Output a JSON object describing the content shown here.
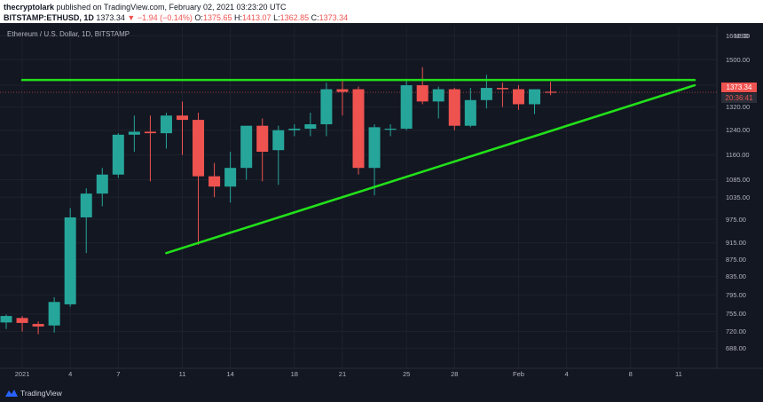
{
  "header": {
    "author": "thecryptolark",
    "published_text": "published on TradingView.com, February 02, 2021 03:23:20 UTC",
    "symbol": "BITSTAMP:ETHUSD, 1D",
    "last": "1373.34",
    "change": "−1.94 (−0.14%)",
    "o_label": "O:",
    "o_val": "1375.65",
    "h_label": "H:",
    "h_val": "1413.07",
    "l_label": "L:",
    "l_val": "1362.85",
    "c_label": "C:",
    "c_val": "1373.34"
  },
  "chart_title": "Ethereum / U.S. Dollar, 1D, BITSTAMP",
  "currency": "USD",
  "price_tag": "1373.34",
  "countdown": "20:36:41",
  "footer": {
    "brand": "TradingView"
  },
  "colors": {
    "up": "#26a69a",
    "down": "#ef5350",
    "trendline": "#22e01a",
    "background": "#131722"
  },
  "chart_data": {
    "type": "candlestick",
    "title": "Ethereum / U.S. Dollar, 1D, BITSTAMP",
    "y_axis": {
      "scale": "log",
      "ticks": [
        1600,
        1500,
        1400,
        1320,
        1240,
        1160,
        1085,
        1035,
        975,
        915,
        875,
        835,
        795,
        755,
        720,
        688
      ],
      "tick_labels": [
        "1600.00",
        "1500.00",
        "1400.00",
        "1320.00",
        "1240.00",
        "1160.00",
        "1085.00",
        "1035.00",
        "975.00",
        "915.00",
        "875.00",
        "835.00",
        "795.00",
        "755.00",
        "720.00",
        "688.00"
      ],
      "range": [
        660,
        1640
      ]
    },
    "x_axis": {
      "ticks": [
        {
          "date": "2021-01-01",
          "label": "2021"
        },
        {
          "date": "2021-01-04",
          "label": "4"
        },
        {
          "date": "2021-01-07",
          "label": "7"
        },
        {
          "date": "2021-01-11",
          "label": "11"
        },
        {
          "date": "2021-01-14",
          "label": "14"
        },
        {
          "date": "2021-01-18",
          "label": "18"
        },
        {
          "date": "2021-01-21",
          "label": "21"
        },
        {
          "date": "2021-01-25",
          "label": "25"
        },
        {
          "date": "2021-01-28",
          "label": "28"
        },
        {
          "date": "2021-02-01",
          "label": "Feb"
        },
        {
          "date": "2021-02-04",
          "label": "4"
        },
        {
          "date": "2021-02-08",
          "label": "8"
        },
        {
          "date": "2021-02-11",
          "label": "11"
        }
      ],
      "range": [
        "2020-12-31",
        "2021-02-13"
      ]
    },
    "candles": [
      {
        "date": "2020-12-31",
        "o": 738,
        "h": 754,
        "l": 725,
        "c": 751
      },
      {
        "date": "2021-01-01",
        "o": 747,
        "h": 751,
        "l": 720,
        "c": 737
      },
      {
        "date": "2021-01-02",
        "o": 735,
        "h": 740,
        "l": 715,
        "c": 730
      },
      {
        "date": "2021-01-03",
        "o": 732,
        "h": 790,
        "l": 718,
        "c": 780
      },
      {
        "date": "2021-01-04",
        "o": 775,
        "h": 1005,
        "l": 770,
        "c": 980
      },
      {
        "date": "2021-01-05",
        "o": 980,
        "h": 1060,
        "l": 890,
        "c": 1045
      },
      {
        "date": "2021-01-06",
        "o": 1045,
        "h": 1120,
        "l": 1010,
        "c": 1100
      },
      {
        "date": "2021-01-07",
        "o": 1100,
        "h": 1230,
        "l": 1090,
        "c": 1225
      },
      {
        "date": "2021-01-08",
        "o": 1225,
        "h": 1290,
        "l": 1170,
        "c": 1235
      },
      {
        "date": "2021-01-09",
        "o": 1235,
        "h": 1290,
        "l": 1080,
        "c": 1230
      },
      {
        "date": "2021-01-10",
        "o": 1230,
        "h": 1300,
        "l": 1180,
        "c": 1290
      },
      {
        "date": "2021-01-11",
        "o": 1290,
        "h": 1340,
        "l": 1160,
        "c": 1275
      },
      {
        "date": "2021-01-12",
        "o": 1275,
        "h": 1300,
        "l": 910,
        "c": 1095
      },
      {
        "date": "2021-01-13",
        "o": 1095,
        "h": 1135,
        "l": 1035,
        "c": 1065
      },
      {
        "date": "2021-01-14",
        "o": 1065,
        "h": 1170,
        "l": 1020,
        "c": 1120
      },
      {
        "date": "2021-01-15",
        "o": 1120,
        "h": 1250,
        "l": 1085,
        "c": 1255
      },
      {
        "date": "2021-01-16",
        "o": 1255,
        "h": 1280,
        "l": 1080,
        "c": 1170
      },
      {
        "date": "2021-01-17",
        "o": 1175,
        "h": 1255,
        "l": 1070,
        "c": 1240
      },
      {
        "date": "2021-01-18",
        "o": 1240,
        "h": 1260,
        "l": 1220,
        "c": 1245
      },
      {
        "date": "2021-01-19",
        "o": 1245,
        "h": 1300,
        "l": 1220,
        "c": 1260
      },
      {
        "date": "2021-01-20",
        "o": 1260,
        "h": 1410,
        "l": 1220,
        "c": 1385
      },
      {
        "date": "2021-01-21",
        "o": 1385,
        "h": 1420,
        "l": 1290,
        "c": 1375
      },
      {
        "date": "2021-01-22",
        "o": 1385,
        "h": 1395,
        "l": 1100,
        "c": 1120
      },
      {
        "date": "2021-01-23",
        "o": 1120,
        "h": 1260,
        "l": 1040,
        "c": 1250
      },
      {
        "date": "2021-01-24",
        "o": 1245,
        "h": 1260,
        "l": 1220,
        "c": 1245
      },
      {
        "date": "2021-01-25",
        "o": 1245,
        "h": 1420,
        "l": 1240,
        "c": 1400
      },
      {
        "date": "2021-01-26",
        "o": 1400,
        "h": 1470,
        "l": 1330,
        "c": 1340
      },
      {
        "date": "2021-01-27",
        "o": 1340,
        "h": 1395,
        "l": 1280,
        "c": 1385
      },
      {
        "date": "2021-01-28",
        "o": 1385,
        "h": 1390,
        "l": 1240,
        "c": 1255
      },
      {
        "date": "2021-01-29",
        "o": 1255,
        "h": 1390,
        "l": 1250,
        "c": 1345
      },
      {
        "date": "2021-01-30",
        "o": 1345,
        "h": 1440,
        "l": 1315,
        "c": 1390
      },
      {
        "date": "2021-01-31",
        "o": 1390,
        "h": 1410,
        "l": 1320,
        "c": 1385
      },
      {
        "date": "2021-02-01",
        "o": 1385,
        "h": 1400,
        "l": 1310,
        "c": 1330
      },
      {
        "date": "2021-02-02",
        "o": 1330,
        "h": 1385,
        "l": 1295,
        "c": 1385
      },
      {
        "date": "2021-02-03",
        "o": 1375.65,
        "h": 1413.07,
        "l": 1362.85,
        "c": 1373.34
      }
    ],
    "last_price": 1373.34,
    "trendlines": [
      {
        "from": {
          "date": "2021-01-01",
          "price": 1420
        },
        "to": {
          "date": "2021-02-12",
          "price": 1420
        }
      },
      {
        "from": {
          "date": "2021-01-10",
          "price": 890
        },
        "to": {
          "date": "2021-02-12",
          "price": 1400
        }
      }
    ]
  }
}
